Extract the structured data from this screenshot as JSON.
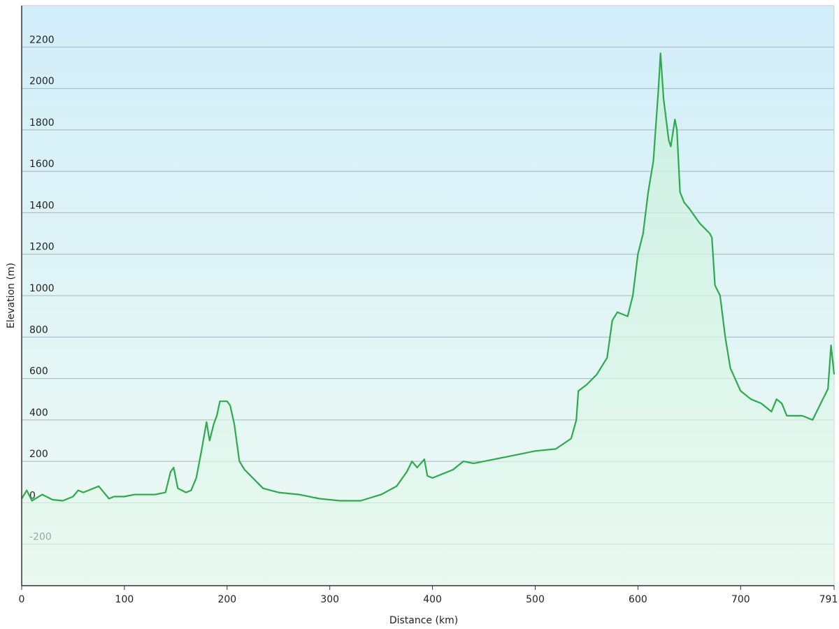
{
  "chart_data": {
    "type": "area",
    "xlabel": "Distance  (km)",
    "ylabel": "Elevation (m)",
    "x": [
      0,
      5,
      10,
      20,
      30,
      40,
      50,
      55,
      60,
      70,
      75,
      80,
      85,
      90,
      100,
      110,
      120,
      130,
      140,
      145,
      148,
      152,
      160,
      165,
      170,
      175,
      180,
      183,
      187,
      190,
      193,
      200,
      203,
      207,
      212,
      217,
      225,
      235,
      250,
      270,
      290,
      310,
      330,
      350,
      365,
      375,
      380,
      385,
      392,
      395,
      400,
      420,
      430,
      440,
      460,
      480,
      500,
      520,
      535,
      540,
      542,
      550,
      560,
      570,
      575,
      580,
      590,
      595,
      600,
      605,
      610,
      615,
      620,
      622,
      625,
      630,
      632,
      636,
      638,
      641,
      645,
      650,
      660,
      670,
      672,
      675,
      680,
      685,
      690,
      700,
      710,
      720,
      730,
      735,
      740,
      745,
      760,
      770,
      780,
      785,
      788,
      791
    ],
    "values": [
      20,
      60,
      10,
      40,
      15,
      10,
      30,
      60,
      50,
      70,
      80,
      50,
      20,
      30,
      30,
      40,
      40,
      40,
      50,
      150,
      170,
      70,
      50,
      60,
      120,
      250,
      390,
      300,
      380,
      420,
      490,
      490,
      470,
      380,
      200,
      160,
      120,
      70,
      50,
      40,
      20,
      10,
      10,
      40,
      80,
      150,
      200,
      170,
      210,
      130,
      120,
      160,
      200,
      190,
      210,
      230,
      250,
      260,
      310,
      400,
      540,
      570,
      620,
      700,
      880,
      920,
      900,
      1000,
      1200,
      1300,
      1500,
      1650,
      2000,
      2170,
      1950,
      1750,
      1720,
      1850,
      1800,
      1500,
      1450,
      1420,
      1350,
      1300,
      1280,
      1050,
      1000,
      800,
      650,
      540,
      500,
      480,
      440,
      500,
      480,
      420,
      420,
      400,
      500,
      550,
      760,
      620
    ],
    "color": "#2eaa4e",
    "xlim": [
      0,
      791
    ],
    "xticks": [
      0,
      100,
      200,
      300,
      400,
      500,
      600,
      700,
      791
    ],
    "ylim": [
      -400,
      2400
    ],
    "yticks": [
      -200,
      0,
      200,
      400,
      600,
      800,
      1000,
      1200,
      1400,
      1600,
      1800,
      2000,
      2200
    ],
    "grid": true
  }
}
